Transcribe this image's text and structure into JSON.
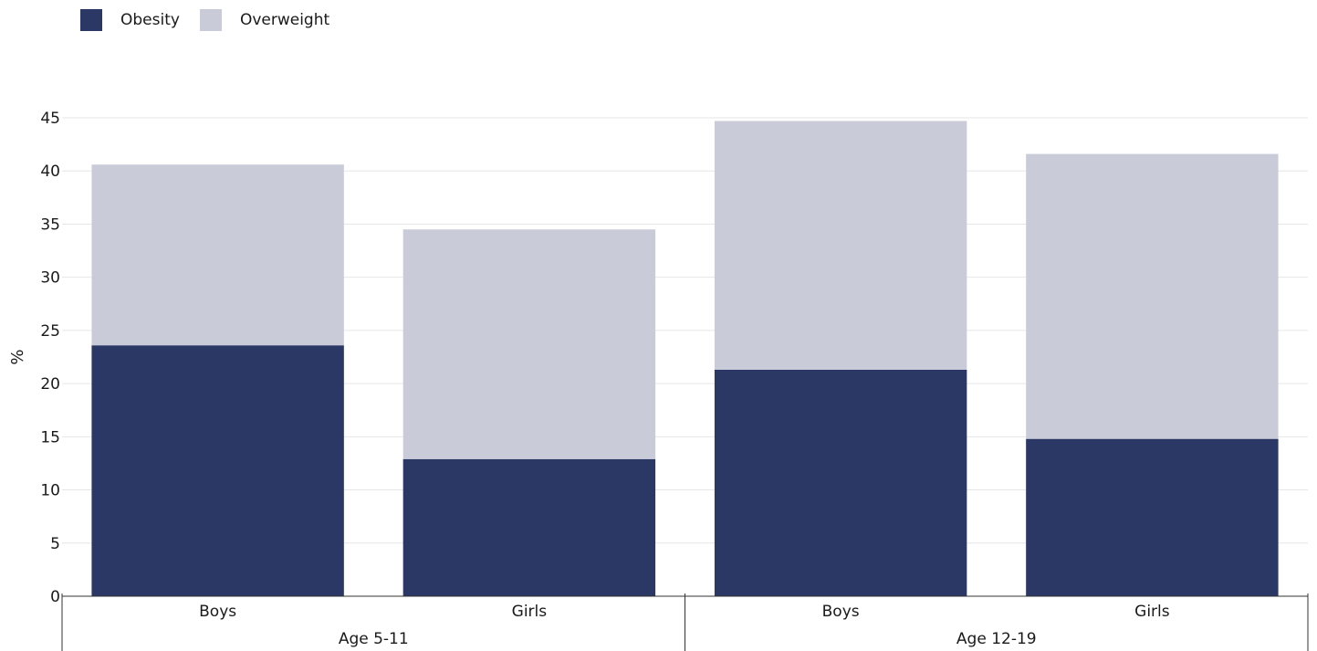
{
  "chart_data": {
    "type": "bar",
    "stacked": true,
    "categories": [
      "Boys",
      "Girls",
      "Boys",
      "Girls"
    ],
    "groups": [
      {
        "label": "Age 5-11",
        "categories": [
          "Boys",
          "Girls"
        ]
      },
      {
        "label": "Age 12-19",
        "categories": [
          "Boys",
          "Girls"
        ]
      }
    ],
    "series": [
      {
        "name": "Obesity",
        "color": "#2b3765",
        "values": [
          23.6,
          12.9,
          21.3,
          14.8
        ]
      },
      {
        "name": "Overweight",
        "color": "#c9ccd8",
        "values": [
          17.0,
          21.6,
          23.4,
          26.8
        ]
      }
    ],
    "ylabel": "%",
    "ylim": [
      0,
      45
    ],
    "yticks": [
      "0",
      "5",
      "10",
      "15",
      "20",
      "25",
      "30",
      "35",
      "40",
      "45"
    ],
    "grid": true,
    "legend_position": "top-left"
  }
}
